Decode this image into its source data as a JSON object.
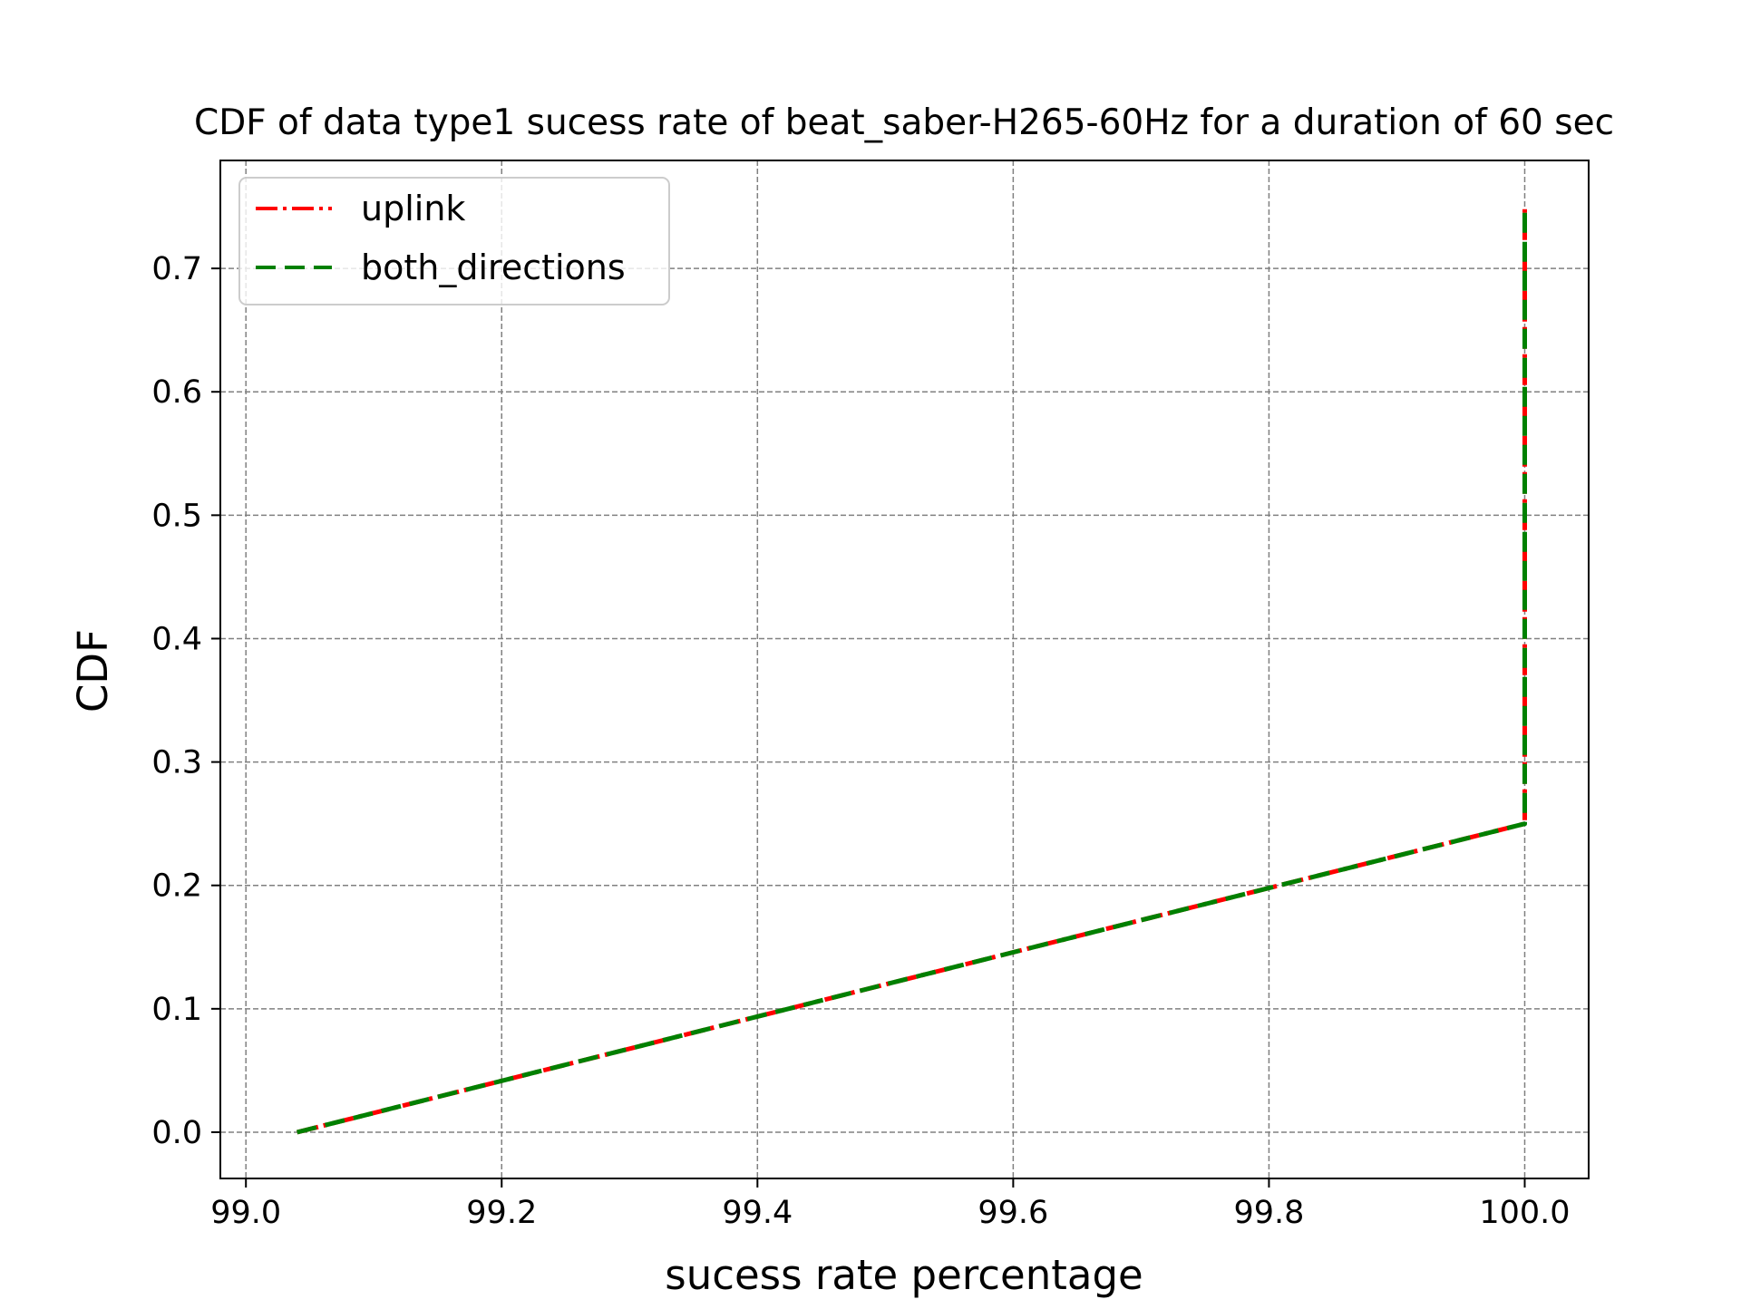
{
  "chart_data": {
    "type": "line",
    "title": "CDF of data type1 sucess rate of beat_saber-H265-60Hz for a duration of 60 sec",
    "xlabel": "sucess rate percentage",
    "ylabel": "CDF",
    "xlim": [
      98.98,
      100.05
    ],
    "ylim": [
      -0.0375,
      0.7875
    ],
    "xticks": [
      99.0,
      99.2,
      99.4,
      99.6,
      99.8,
      100.0
    ],
    "xtick_labels": [
      "99.0",
      "99.2",
      "99.4",
      "99.6",
      "99.8",
      "100.0"
    ],
    "yticks": [
      0.0,
      0.1,
      0.2,
      0.3,
      0.4,
      0.5,
      0.6,
      0.7
    ],
    "ytick_labels": [
      "0.0",
      "0.1",
      "0.2",
      "0.3",
      "0.4",
      "0.5",
      "0.6",
      "0.7"
    ],
    "grid": true,
    "legend_position": "upper-left",
    "series": [
      {
        "name": "uplink",
        "color": "#ff0000",
        "style": "dashdot",
        "x": [
          99.04,
          100.0,
          100.0
        ],
        "y": [
          0.0,
          0.25,
          0.75
        ]
      },
      {
        "name": "both_directions",
        "color": "#008000",
        "style": "dashed",
        "x": [
          99.04,
          100.0,
          100.0
        ],
        "y": [
          0.0,
          0.25,
          0.75
        ]
      }
    ]
  }
}
